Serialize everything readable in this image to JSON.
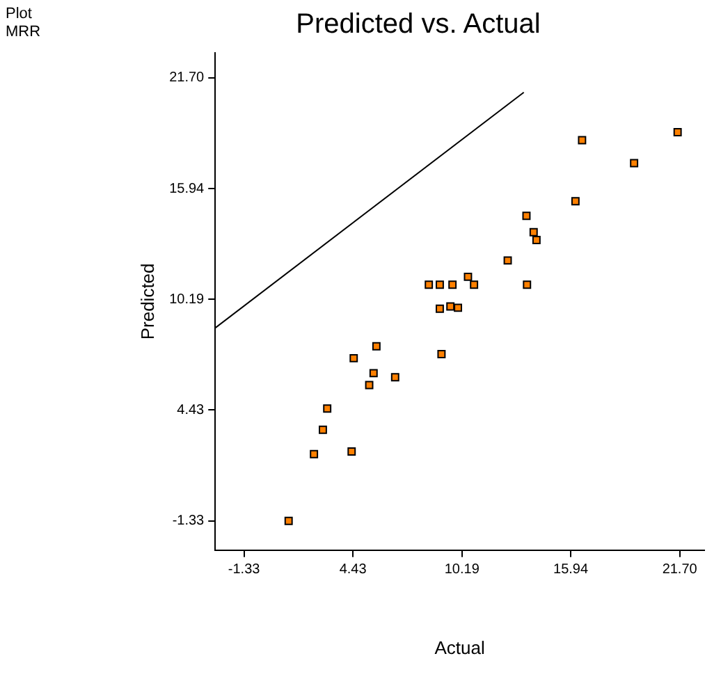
{
  "chart_data": {
    "type": "scatter",
    "title": "Predicted vs. Actual",
    "xlabel": "Actual",
    "ylabel": "Predicted",
    "annotations": [
      "Plot",
      "MRR"
    ],
    "xlim": [
      -2.85,
      23
    ],
    "ylim": [
      -2.85,
      23
    ],
    "xticks": [
      -1.33,
      4.43,
      10.19,
      15.94,
      {
        "value": 21.7,
        "label": "21.70"
      }
    ],
    "yticks": [
      -1.33,
      4.43,
      10.19,
      15.94,
      {
        "value": 21.7,
        "label": "21.70"
      }
    ],
    "grid": false,
    "legend": false,
    "marker": "square",
    "series": [
      {
        "color": "#ff8000",
        "x": [
          16.54,
          21.59,
          19.29,
          16.19,
          13.6,
          13.98,
          14.13,
          12.61,
          10.51,
          8.44,
          9.02,
          9.69,
          10.83,
          13.63,
          9.02,
          9.58,
          9.98,
          5.67,
          4.47,
          9.11,
          5.52,
          5.29,
          6.66,
          3.07,
          2.84,
          2.37,
          4.36,
          1.03
        ],
        "values": [
          18.46,
          18.88,
          17.27,
          15.29,
          14.53,
          13.68,
          13.27,
          12.21,
          11.36,
          10.95,
          10.95,
          10.95,
          10.95,
          10.95,
          9.7,
          9.82,
          9.75,
          7.75,
          7.13,
          7.34,
          6.35,
          5.73,
          6.14,
          4.51,
          3.41,
          2.14,
          2.28,
          -1.33
        ]
      },
      {
        "type": "line",
        "color": "#000000",
        "marker": "none",
        "line_style": "solid",
        "x": [
          -2.85,
          13.46
        ],
        "values": [
          8.7,
          20.95
        ]
      }
    ]
  }
}
